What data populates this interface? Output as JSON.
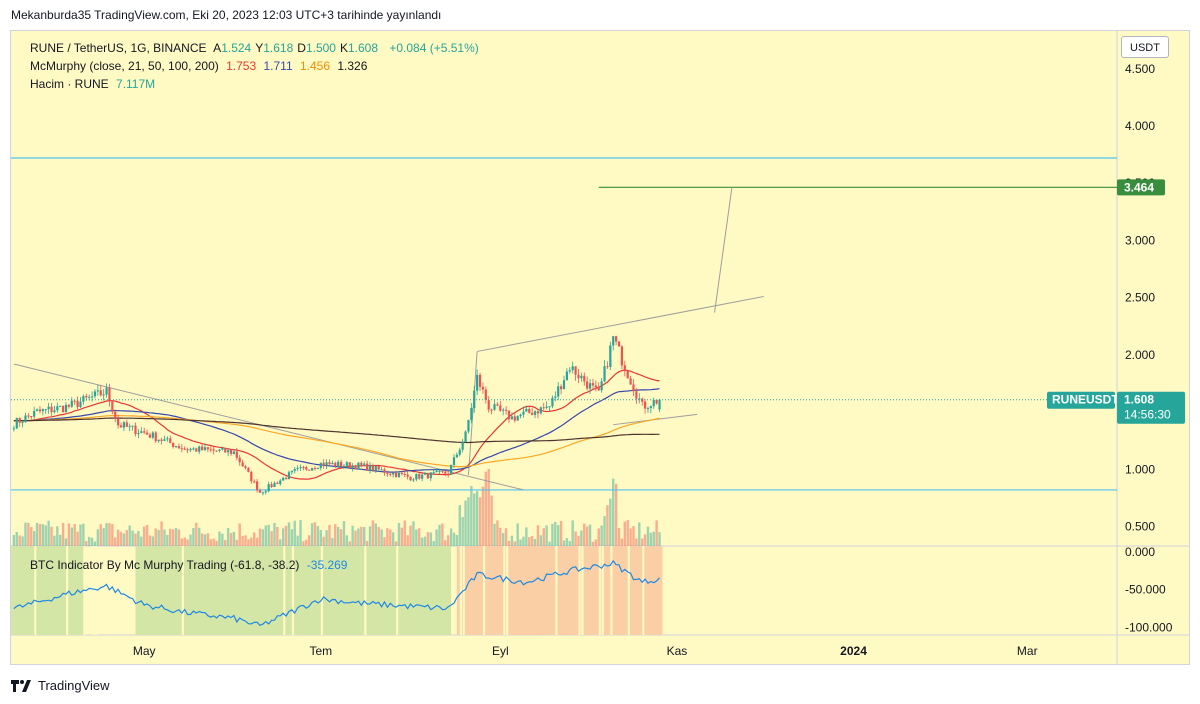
{
  "publication": "Mekanburda35 TradingView.com, Eki 20, 2023 12:03 UTC+3 tarihinde yayınlandı",
  "legend": {
    "symbol": "RUNE / TetherUS, 1G, BINANCE",
    "ohlc": [
      {
        "label": "A",
        "value": "1.524"
      },
      {
        "label": "Y",
        "value": "1.618"
      },
      {
        "label": "D",
        "value": "1.500"
      },
      {
        "label": "K",
        "value": "1.608"
      }
    ],
    "change": "+0.084 (+5.51%)",
    "mcmurphy_label": "McMurphy (close, 21, 50, 100, 200)",
    "mcmurphy_values": [
      "1.753",
      "1.711",
      "1.456",
      "1.326"
    ],
    "volume_label": "Hacim · RUNE",
    "volume_value": "7.117M",
    "indicator_label": "BTC Indicator By Mc Murphy Trading (-61.8, -38.2)",
    "indicator_value": "-35.269"
  },
  "currency_button": "USDT",
  "price_badges": {
    "target": "3.464",
    "symbol": "RUNEUSDT",
    "last": "1.608",
    "countdown": "14:56:30"
  },
  "footer_logo": "TradingView",
  "colors": {
    "background": "#fff9c4",
    "up": "#26a69a",
    "down": "#ef5350",
    "ma21": "#e53935",
    "ma50": "#3949ab",
    "ma100": "#f9a825",
    "ma200": "#4e342e",
    "indicator_line": "#1e88e5",
    "zone_green": "#d4e6a5",
    "zone_orange": "#fbcfa5",
    "hline": "#4fc3f7",
    "target_line": "#388e3c"
  },
  "chart_data": [
    {
      "type": "candlestick",
      "symbol": "RUNE / TetherUS",
      "timeframe": "1G",
      "y_ticks": [
        "4.500",
        "4.000",
        "3.500",
        "3.000",
        "2.500",
        "2.000",
        "1.500",
        "1.000",
        "0.500"
      ],
      "ylim": [
        0.33,
        4.83
      ],
      "x_labels": [
        "May",
        "Tem",
        "Eyl",
        "Kas",
        "2024",
        "Mar"
      ],
      "x_range_days": [
        "2023-03-16",
        "2024-04-01"
      ],
      "horizontal_levels": [
        3.72,
        0.82,
        3.464
      ],
      "trendlines": [
        {
          "from": [
            "2023-03-17",
            1.92
          ],
          "to": [
            "2023-09-09",
            0.82
          ]
        },
        {
          "from": [
            "2023-08-24",
            2.03
          ],
          "to": [
            "2023-12-01",
            2.51
          ]
        },
        {
          "from": [
            "2023-10-10",
            1.39
          ],
          "to": [
            "2023-11-08",
            1.48
          ]
        },
        {
          "from": [
            "2023-08-21",
            0.95
          ],
          "to": [
            "2023-08-24",
            2.03
          ]
        },
        {
          "from": [
            "2023-11-14",
            2.37
          ],
          "to": [
            "2023-11-20",
            3.464
          ]
        }
      ],
      "anchors": [
        {
          "date": "2023-03-17",
          "price": 1.4
        },
        {
          "date": "2023-03-25",
          "price": 1.5
        },
        {
          "date": "2023-04-05",
          "price": 1.55
        },
        {
          "date": "2023-04-18",
          "price": 1.68
        },
        {
          "date": "2023-04-22",
          "price": 1.39
        },
        {
          "date": "2023-05-01",
          "price": 1.32
        },
        {
          "date": "2023-05-15",
          "price": 1.18
        },
        {
          "date": "2023-06-01",
          "price": 1.15
        },
        {
          "date": "2023-06-10",
          "price": 0.8
        },
        {
          "date": "2023-06-22",
          "price": 0.98
        },
        {
          "date": "2023-07-01",
          "price": 1.05
        },
        {
          "date": "2023-07-15",
          "price": 1.03
        },
        {
          "date": "2023-08-01",
          "price": 0.93
        },
        {
          "date": "2023-08-14",
          "price": 0.97
        },
        {
          "date": "2023-08-20",
          "price": 1.3
        },
        {
          "date": "2023-08-24",
          "price": 1.8
        },
        {
          "date": "2023-08-28",
          "price": 1.55
        },
        {
          "date": "2023-09-05",
          "price": 1.45
        },
        {
          "date": "2023-09-18",
          "price": 1.55
        },
        {
          "date": "2023-09-25",
          "price": 1.9
        },
        {
          "date": "2023-10-05",
          "price": 1.65
        },
        {
          "date": "2023-10-10",
          "price": 2.15
        },
        {
          "date": "2023-10-14",
          "price": 1.9
        },
        {
          "date": "2023-10-20",
          "price": 1.55
        },
        {
          "date": "2023-10-26",
          "price": 1.61
        }
      ],
      "ma_end_values": {
        "ma21": 1.753,
        "ma50": 1.711,
        "ma100": 1.456,
        "ma200": 1.326
      },
      "last": {
        "open": 1.524,
        "high": 1.618,
        "low": 1.5,
        "close": 1.608
      }
    },
    {
      "type": "line",
      "name": "BTC Indicator By Mc Murphy Trading",
      "y_ticks": [
        "0.000",
        "-50.000",
        "-100.000"
      ],
      "ylim": [
        -110,
        8
      ],
      "zones": [
        {
          "from": "2023-03-16",
          "to": "2023-04-10",
          "color": "green"
        },
        {
          "from": "2023-04-28",
          "to": "2023-08-15",
          "color": "green"
        },
        {
          "from": "2023-08-17",
          "to": "2023-10-27",
          "color": "orange"
        }
      ],
      "anchors": [
        {
          "date": "2023-03-17",
          "value": -75
        },
        {
          "date": "2023-04-05",
          "value": -55
        },
        {
          "date": "2023-04-18",
          "value": -45
        },
        {
          "date": "2023-05-01",
          "value": -70
        },
        {
          "date": "2023-05-15",
          "value": -80
        },
        {
          "date": "2023-06-01",
          "value": -88
        },
        {
          "date": "2023-06-10",
          "value": -98
        },
        {
          "date": "2023-07-01",
          "value": -62
        },
        {
          "date": "2023-07-15",
          "value": -68
        },
        {
          "date": "2023-08-14",
          "value": -75
        },
        {
          "date": "2023-08-24",
          "value": -30
        },
        {
          "date": "2023-09-10",
          "value": -40
        },
        {
          "date": "2023-09-25",
          "value": -25
        },
        {
          "date": "2023-10-10",
          "value": -15
        },
        {
          "date": "2023-10-20",
          "value": -40
        },
        {
          "date": "2023-10-26",
          "value": -35.269
        }
      ]
    }
  ]
}
